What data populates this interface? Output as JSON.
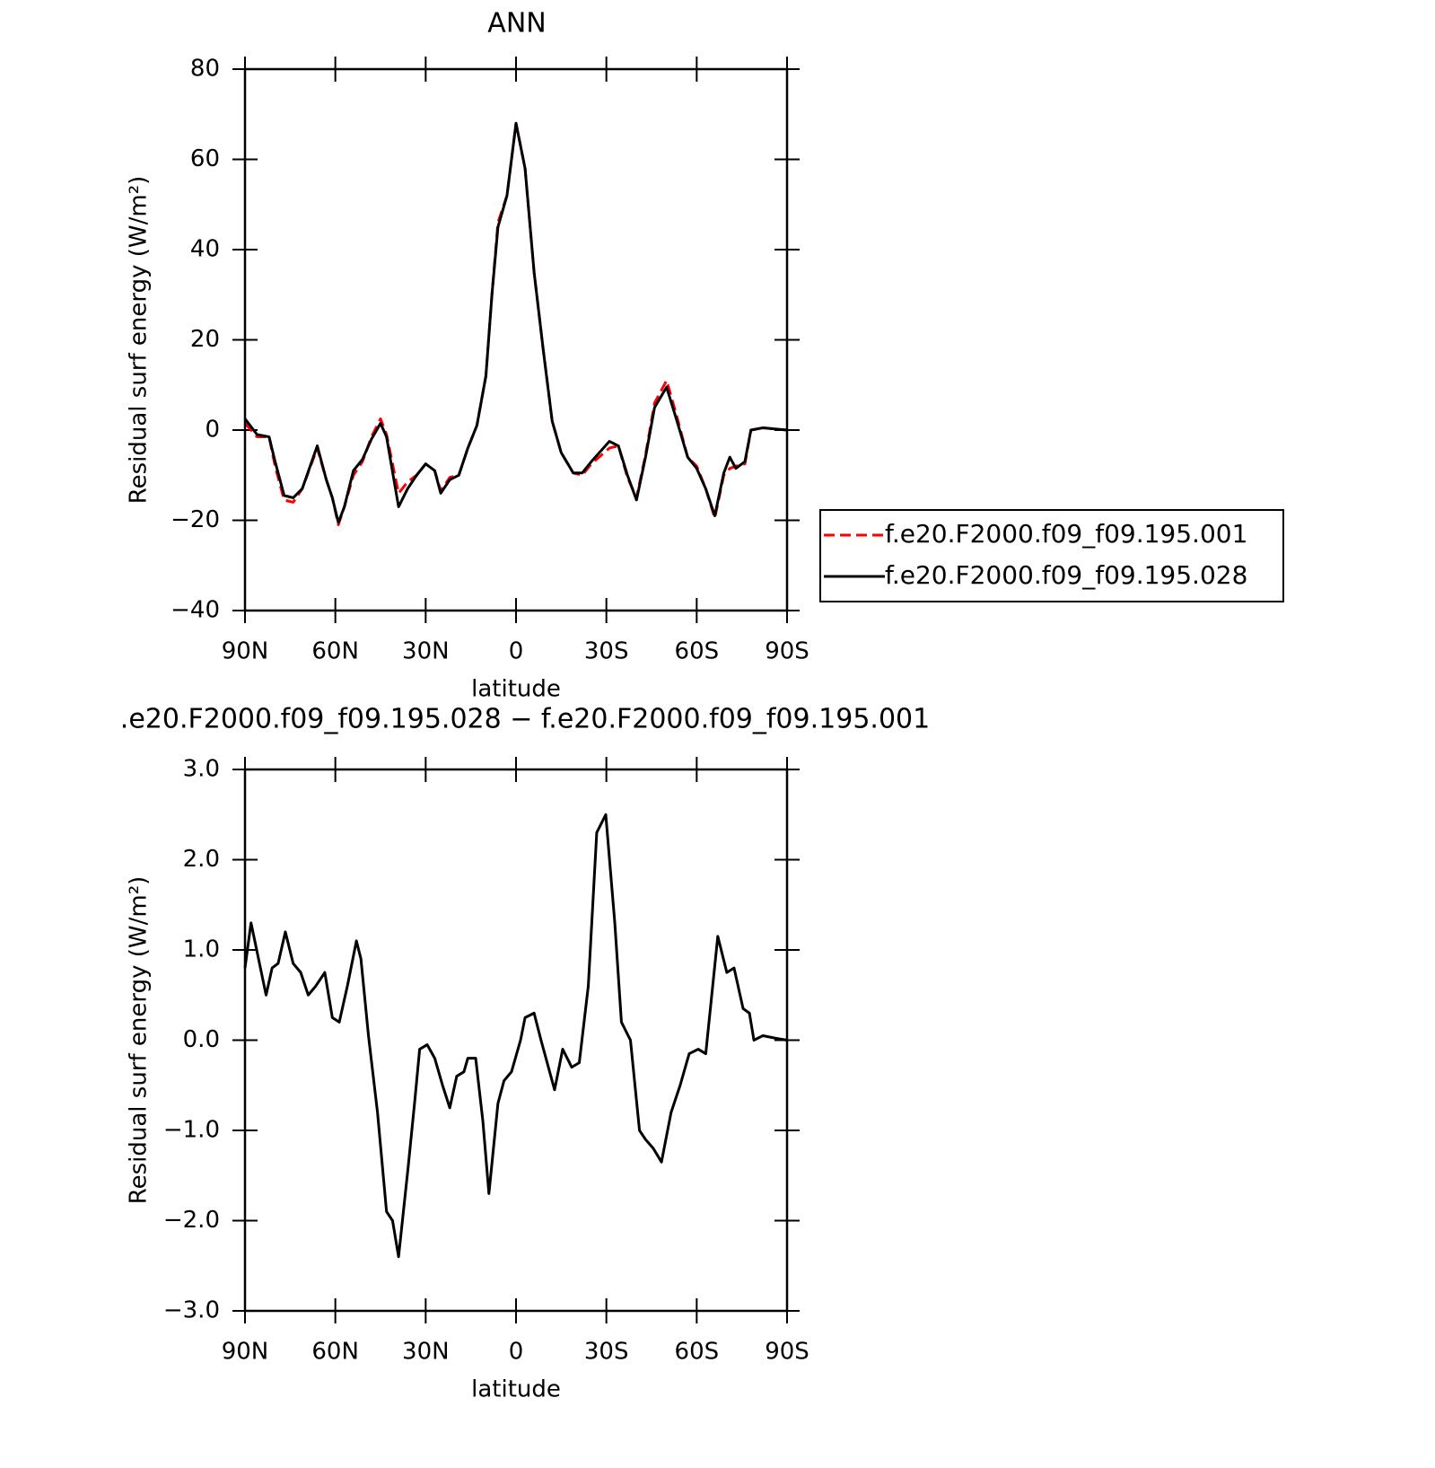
{
  "chart_data": [
    {
      "type": "line",
      "title": "ANN",
      "xlabel": "latitude",
      "ylabel": "Residual surf energy (W/m²)",
      "xlim": [
        90,
        -90
      ],
      "ylim": [
        -40,
        80
      ],
      "xticks": [
        {
          "value": 90,
          "label": "90N"
        },
        {
          "value": 60,
          "label": "60N"
        },
        {
          "value": 30,
          "label": "30N"
        },
        0,
        {
          "value": -30,
          "label": "30S"
        },
        {
          "value": -60,
          "label": "60S"
        },
        {
          "value": -90,
          "label": "90S"
        }
      ],
      "yticks": [
        80,
        60,
        40,
        20,
        0,
        {
          "value": -20,
          "label": "−20"
        },
        {
          "value": -40,
          "label": "−40"
        }
      ],
      "legend": "right",
      "x": [
        90,
        86,
        82,
        80,
        77,
        74,
        71,
        66,
        63,
        61,
        59,
        57,
        54,
        51,
        48,
        45,
        43,
        39,
        36,
        33,
        30,
        27,
        25,
        22,
        19,
        16,
        13,
        10,
        8,
        6,
        3,
        0,
        -3,
        -6,
        -9,
        -12,
        -15,
        -19,
        -22,
        -25,
        -31,
        -34,
        -37,
        -40,
        -43,
        -46,
        -50,
        -53,
        -57,
        -60,
        -63,
        -66,
        -69,
        -71,
        -73,
        -76,
        -78,
        -82,
        -90
      ],
      "series": [
        {
          "name": "f.e20.F2000.f09_f09.195.001",
          "color": "#ff0000",
          "dash": "dashed",
          "values": [
            1.5,
            -1.5,
            -1.5,
            -8,
            -15.5,
            -16,
            -13,
            -4,
            -11,
            -15,
            -21,
            -17,
            -10,
            -7,
            -1.5,
            2.5,
            -1,
            -14,
            -11.5,
            -10,
            -7.5,
            -9,
            -13.5,
            -10.5,
            -10,
            -4,
            1,
            12,
            30,
            46,
            52,
            68,
            58,
            35,
            18,
            2,
            -5,
            -9.5,
            -10,
            -7.5,
            -4,
            -3.5,
            -10.5,
            -15,
            -5.5,
            6,
            11,
            4,
            -6,
            -8,
            -13,
            -19.5,
            -10,
            -8.5,
            -8,
            -7.5,
            0,
            0.5,
            0
          ]
        },
        {
          "name": "f.e20.F2000.f09_f09.195.028",
          "color": "#000000",
          "dash": "solid",
          "values": [
            2.5,
            -1,
            -1.5,
            -7,
            -14.5,
            -15,
            -13,
            -3.5,
            -11,
            -15,
            -20.5,
            -17,
            -9,
            -6.5,
            -2,
            1.5,
            -1.5,
            -17,
            -13,
            -10,
            -7.5,
            -9,
            -14,
            -11,
            -10,
            -4,
            1,
            12,
            30,
            45,
            52,
            68,
            58,
            35,
            18,
            2,
            -5,
            -9.5,
            -9.5,
            -7,
            -2.5,
            -3.5,
            -10,
            -15.5,
            -6,
            5,
            9.5,
            3,
            -6,
            -8.5,
            -13,
            -19,
            -9.5,
            -6,
            -8.5,
            -7,
            0,
            0.5,
            0
          ]
        }
      ]
    },
    {
      "type": "line",
      "title": ".e20.F2000.f09_f09.195.028 − f.e20.F2000.f09_f09.195.001",
      "xlabel": "latitude",
      "ylabel": "Residual surf energy (W/m²)",
      "xlim": [
        90,
        -90
      ],
      "ylim": [
        -3,
        3
      ],
      "xticks": [
        {
          "value": 90,
          "label": "90N"
        },
        {
          "value": 60,
          "label": "60N"
        },
        {
          "value": 30,
          "label": "30N"
        },
        0,
        {
          "value": -30,
          "label": "30S"
        },
        {
          "value": -60,
          "label": "60S"
        },
        {
          "value": -90,
          "label": "90S"
        }
      ],
      "yticks": [
        {
          "value": 3,
          "label": "3.0"
        },
        {
          "value": 2,
          "label": "2.0"
        },
        {
          "value": 1,
          "label": "1.0"
        },
        {
          "value": 0,
          "label": "0.0"
        },
        {
          "value": -1,
          "label": "−1.0"
        },
        {
          "value": -2,
          "label": "−2.0"
        },
        {
          "value": -3,
          "label": "−3.0"
        }
      ],
      "x": [
        90,
        88,
        85.5,
        83,
        81,
        79,
        76.6,
        74,
        71.5,
        69,
        66.5,
        63.5,
        61,
        58.7,
        56,
        53,
        51.5,
        49,
        46,
        43,
        41,
        39,
        35.8,
        33.7,
        32,
        29.5,
        27,
        24.4,
        22,
        19.7,
        17.3,
        16,
        13.4,
        11,
        9,
        6,
        4,
        1.5,
        -1.5,
        -3,
        -6,
        -8.3,
        -12.8,
        -15.5,
        -18.5,
        -21,
        -24,
        -26.8,
        -29.8,
        -32.8,
        -35,
        -38,
        -41,
        -43,
        -45.6,
        -48.3,
        -51.5,
        -54.5,
        -57.5,
        -60.5,
        -63,
        -65,
        -67,
        -70,
        -72.4,
        -75.4,
        -77.5,
        -79,
        -82,
        -86.4,
        -90
      ],
      "series": [
        {
          "color": "#000000",
          "dash": "solid",
          "values": [
            0.8,
            1.3,
            0.9,
            0.5,
            0.8,
            0.85,
            1.2,
            0.85,
            0.75,
            0.5,
            0.6,
            0.75,
            0.25,
            0.2,
            0.6,
            1.1,
            0.9,
            0.05,
            -0.8,
            -1.9,
            -2.0,
            -2.4,
            -1.4,
            -0.7,
            -0.1,
            -0.05,
            -0.2,
            -0.5,
            -0.75,
            -0.4,
            -0.35,
            -0.2,
            -0.2,
            -0.9,
            -1.7,
            -0.7,
            -0.45,
            -0.35,
            0.0,
            0.25,
            0.3,
            0.0,
            -0.55,
            -0.1,
            -0.3,
            -0.25,
            0.6,
            2.3,
            2.5,
            1.3,
            0.2,
            0.0,
            -1.0,
            -1.1,
            -1.2,
            -1.35,
            -0.8,
            -0.5,
            -0.15,
            -0.1,
            -0.15,
            0.5,
            1.15,
            0.75,
            0.8,
            0.35,
            0.3,
            0.0,
            0.05,
            0.02,
            0.0
          ]
        }
      ]
    }
  ]
}
